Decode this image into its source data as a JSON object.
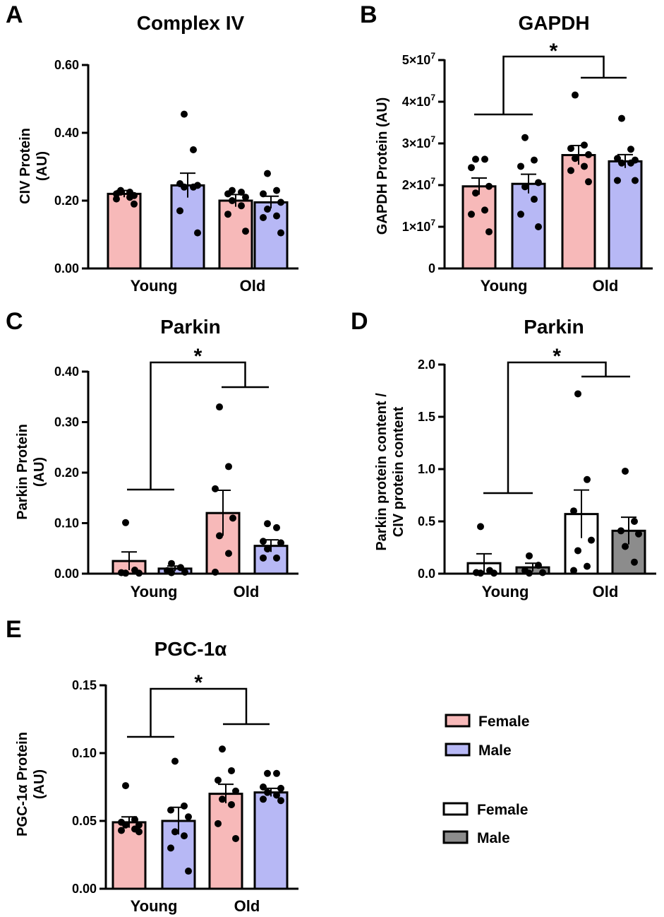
{
  "colors": {
    "female": "#f7b9b9",
    "male": "#b7b8f5",
    "female_alt": "#ffffff",
    "male_alt": "#8c8c8c",
    "ink": "#000000"
  },
  "legend": {
    "set1": [
      {
        "label": "Female",
        "color": "#f7b9b9"
      },
      {
        "label": "Male",
        "color": "#b7b8f5"
      }
    ],
    "set2": [
      {
        "label": "Female",
        "color": "#ffffff"
      },
      {
        "label": "Male",
        "color": "#8c8c8c"
      }
    ]
  },
  "chart_data": [
    {
      "panel": "A",
      "type": "bar",
      "title": "Complex IV",
      "ylabel": [
        "CIV Protein",
        "(AU)"
      ],
      "ylim": [
        0,
        0.6
      ],
      "yticks": [
        0,
        0.2,
        0.4,
        0.6
      ],
      "ytick_labels": [
        "0.00",
        "0.20",
        "0.40",
        "0.60"
      ],
      "categories": [
        "Young",
        "Old"
      ],
      "significance": null,
      "series": [
        {
          "name": "Female",
          "color": "#f7b9b9",
          "values": [
            0.22,
            0.2
          ],
          "errors": [
            0.01,
            0.018
          ],
          "points": [
            [
              0.23,
              0.225,
              0.22,
              0.215,
              0.225,
              0.21,
              0.205,
              0.19
            ],
            [
              0.23,
              0.225,
              0.22,
              0.21,
              0.2,
              0.185,
              0.16,
              0.11
            ]
          ]
        },
        {
          "name": "Male",
          "color": "#b7b8f5",
          "values": [
            0.245,
            0.195
          ],
          "errors": [
            0.036,
            0.018
          ],
          "points": [
            [
              0.455,
              0.35,
              0.25,
              0.245,
              0.24,
              0.24,
              0.17,
              0.105
            ],
            [
              0.28,
              0.23,
              0.22,
              0.195,
              0.175,
              0.155,
              0.15,
              0.105
            ]
          ]
        }
      ]
    },
    {
      "panel": "B",
      "type": "bar",
      "title": "GAPDH",
      "ylabel": [
        "GAPDH Protein (AU)"
      ],
      "ylim": [
        0,
        50000000
      ],
      "yticks": [
        0,
        10000000,
        20000000,
        30000000,
        40000000,
        50000000
      ],
      "ytick_labels": [
        "0",
        "1×10^7",
        "2×10^7",
        "3×10^7",
        "4×10^7",
        "5×10^7"
      ],
      "categories": [
        "Young",
        "Old"
      ],
      "significance": "*",
      "series": [
        {
          "name": "Female",
          "color": "#f7b9b9",
          "values": [
            19700000,
            27200000
          ],
          "errors": [
            2000000,
            2300000
          ],
          "points": [
            [
              26200000,
              26200000,
              24200000,
              19700000,
              18100000,
              14000000,
              13000000,
              8800000
            ],
            [
              41600000,
              29600000,
              28800000,
              27300000,
              26400000,
              24500000,
              23500000,
              20800000
            ]
          ]
        },
        {
          "name": "Male",
          "color": "#b7b8f5",
          "values": [
            20300000,
            25700000
          ],
          "errors": [
            2300000,
            1600000
          ],
          "points": [
            [
              31400000,
              26000000,
              24500000,
              20600000,
              19600000,
              16600000,
              13000000,
              10000000
            ],
            [
              36000000,
              28600000,
              26400000,
              26000000,
              25300000,
              25300000,
              21100000,
              21100000
            ]
          ]
        }
      ]
    },
    {
      "panel": "C",
      "type": "bar",
      "title": "Parkin",
      "ylabel": [
        "Parkin Protein",
        "(AU)"
      ],
      "ylim": [
        0,
        0.4
      ],
      "yticks": [
        0,
        0.1,
        0.2,
        0.3,
        0.4
      ],
      "ytick_labels": [
        "0.00",
        "0.10",
        "0.20",
        "0.30",
        "0.40"
      ],
      "categories": [
        "Young",
        "Old"
      ],
      "significance": "*",
      "series": [
        {
          "name": "Female",
          "color": "#f7b9b9",
          "values": [
            0.025,
            0.12
          ],
          "errors": [
            0.018,
            0.045
          ],
          "points": [
            [
              0.101,
              0.007,
              0.002,
              0.001,
              0.001
            ],
            [
              0.33,
              0.212,
              0.168,
              0.11,
              0.075,
              0.04,
              0.003
            ]
          ]
        },
        {
          "name": "Male",
          "color": "#b7b8f5",
          "values": [
            0.01,
            0.055
          ],
          "errors": [
            0.005,
            0.012
          ],
          "points": [
            [
              0.02,
              0.012,
              0.006,
              0.003,
              0.002
            ],
            [
              0.099,
              0.091,
              0.064,
              0.061,
              0.049,
              0.031,
              0.031
            ]
          ]
        }
      ]
    },
    {
      "panel": "D",
      "type": "bar",
      "title": "Parkin",
      "ylabel": [
        "Parkin protein content /",
        "CIV protein content"
      ],
      "ylim": [
        0,
        2.0
      ],
      "yticks": [
        0,
        0.5,
        1.0,
        1.5,
        2.0
      ],
      "ytick_labels": [
        "0.0",
        "0.5",
        "1.0",
        "1.5",
        "2.0"
      ],
      "categories": [
        "Young",
        "Old"
      ],
      "significance": "*",
      "series": [
        {
          "name": "Female",
          "color": "#ffffff",
          "values": [
            0.1,
            0.57
          ],
          "errors": [
            0.09,
            0.23
          ],
          "points": [
            [
              0.45,
              0.03,
              0.01,
              0.005,
              0.005
            ],
            [
              1.72,
              0.9,
              0.6,
              0.32,
              0.22,
              0.07,
              0.03
            ]
          ]
        },
        {
          "name": "Male",
          "color": "#8c8c8c",
          "values": [
            0.06,
            0.41
          ],
          "errors": [
            0.04,
            0.13
          ],
          "points": [
            [
              0.17,
              0.08,
              0.03,
              0.01,
              0.005
            ],
            [
              0.98,
              0.5,
              0.41,
              0.38,
              0.26,
              0.11
            ]
          ]
        }
      ]
    },
    {
      "panel": "E",
      "type": "bar",
      "title": "PGC-1α",
      "ylabel": [
        "PGC-1α Protein",
        "(AU)"
      ],
      "ylim": [
        0,
        0.15
      ],
      "yticks": [
        0,
        0.05,
        0.1,
        0.15
      ],
      "ytick_labels": [
        "0.00",
        "0.05",
        "0.10",
        "0.15"
      ],
      "categories": [
        "Young",
        "Old"
      ],
      "significance": "*",
      "series": [
        {
          "name": "Female",
          "color": "#f7b9b9",
          "values": [
            0.049,
            0.07
          ],
          "errors": [
            0.004,
            0.007
          ],
          "points": [
            [
              0.076,
              0.051,
              0.049,
              0.047,
              0.047,
              0.044,
              0.043,
              0.042
            ],
            [
              0.103,
              0.087,
              0.08,
              0.072,
              0.066,
              0.062,
              0.048,
              0.037
            ]
          ]
        },
        {
          "name": "Male",
          "color": "#b7b8f5",
          "values": [
            0.05,
            0.071
          ],
          "errors": [
            0.01,
            0.003
          ],
          "points": [
            [
              0.094,
              0.061,
              0.058,
              0.053,
              0.042,
              0.039,
              0.03,
              0.013
            ],
            [
              0.085,
              0.085,
              0.075,
              0.074,
              0.071,
              0.069,
              0.066,
              0.065
            ]
          ]
        }
      ]
    }
  ]
}
